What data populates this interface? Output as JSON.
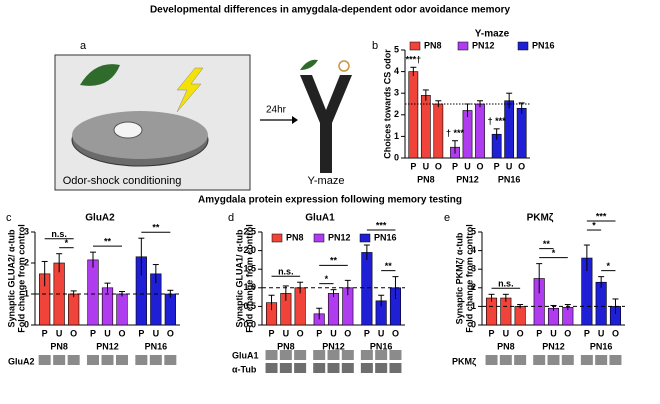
{
  "figure_title": "Developmental differences in amygdala-dependent odor avoidance memory",
  "section_title": "Amygdala protein expression following memory testing",
  "panel_letters": [
    "a",
    "b",
    "c",
    "d",
    "e"
  ],
  "panel_a": {
    "step1": "Odor-shock conditioning",
    "delay": "24hr",
    "step2": "Y-maze"
  },
  "blots": {
    "c": [
      "GluA2"
    ],
    "d": [
      "GluA1",
      "α-Tub"
    ],
    "e": [
      "PKMζ"
    ]
  },
  "chart_data": [
    {
      "type": "bar",
      "title": "Y-maze",
      "y_label": "Choices towards CS odor",
      "categories": [
        "P",
        "U",
        "O"
      ],
      "series": [
        {
          "name": "PN8",
          "color": "#f0433a",
          "values": [
            4.0,
            2.9,
            2.5
          ],
          "errors": [
            0.2,
            0.25,
            0.15
          ]
        },
        {
          "name": "PN12",
          "color": "#b03cf0",
          "values": [
            0.5,
            2.2,
            2.5
          ],
          "errors": [
            0.3,
            0.3,
            0.15
          ]
        },
        {
          "name": "PN16",
          "color": "#1f1fd6",
          "values": [
            1.1,
            2.65,
            2.3
          ],
          "errors": [
            0.25,
            0.35,
            0.25
          ]
        }
      ],
      "ylim": [
        0,
        5
      ],
      "yticks": [
        0,
        1,
        2,
        3,
        4,
        5
      ],
      "ref_line": 2.5,
      "legend": "top",
      "annotations": [
        "***†",
        "† ***",
        "† ***"
      ]
    },
    {
      "type": "bar",
      "title": "GluA2",
      "y_label": "Synaptic GLUA2/ α-tub",
      "y_label2": "Fold change from control",
      "categories": [
        "P",
        "U",
        "O"
      ],
      "series": [
        {
          "name": "PN8",
          "color": "#f0433a",
          "values": [
            1.65,
            2.0,
            1.0
          ],
          "errors": [
            0.4,
            0.3,
            0.1
          ]
        },
        {
          "name": "PN12",
          "color": "#b03cf0",
          "values": [
            2.1,
            1.2,
            1.0
          ],
          "errors": [
            0.25,
            0.15,
            0.08
          ]
        },
        {
          "name": "PN16",
          "color": "#1f1fd6",
          "values": [
            2.2,
            1.65,
            1.0
          ],
          "errors": [
            0.6,
            0.3,
            0.12
          ]
        }
      ],
      "ylim": [
        0,
        3
      ],
      "yticks": [
        0,
        1,
        2,
        3
      ],
      "ref_line": 1,
      "annotations": [
        "n.s.",
        "*",
        "**",
        "**"
      ]
    },
    {
      "type": "bar",
      "title": "GluA1",
      "y_label": "Synaptic GLUA1/ α-tub",
      "y_label2": "Fold change from control",
      "categories": [
        "P",
        "U",
        "O"
      ],
      "series": [
        {
          "name": "PN8",
          "color": "#f0433a",
          "values": [
            0.6,
            0.85,
            1.0
          ],
          "errors": [
            0.2,
            0.2,
            0.15
          ]
        },
        {
          "name": "PN12",
          "color": "#b03cf0",
          "values": [
            0.3,
            0.85,
            1.0
          ],
          "errors": [
            0.15,
            0.1,
            0.2
          ]
        },
        {
          "name": "PN16",
          "color": "#1f1fd6",
          "values": [
            1.95,
            0.65,
            1.0
          ],
          "errors": [
            0.2,
            0.15,
            0.3
          ]
        }
      ],
      "ylim": [
        0,
        2.5
      ],
      "yticks": [
        {
          "value": 0,
          "label": "0.0"
        },
        0.5,
        {
          "value": 1,
          "label": "1.0"
        },
        1.5,
        {
          "value": 2,
          "label": "2.0"
        },
        2.5
      ],
      "ref_line": 1,
      "legend": "upper right",
      "annotations": [
        "n.s.",
        "*",
        "**",
        "***",
        "**"
      ]
    },
    {
      "type": "bar",
      "title": "PKMζ",
      "y_label": "Synaptic PKMζ/ α-tub",
      "y_label2": "Fold change from control",
      "categories": [
        "P",
        "U",
        "O"
      ],
      "series": [
        {
          "name": "PN8",
          "color": "#f0433a",
          "values": [
            1.45,
            1.45,
            1.0
          ],
          "errors": [
            0.2,
            0.2,
            0.1
          ]
        },
        {
          "name": "PN12",
          "color": "#b03cf0",
          "values": [
            2.5,
            0.9,
            0.95
          ],
          "errors": [
            0.8,
            0.15,
            0.15
          ]
        },
        {
          "name": "PN16",
          "color": "#1f1fd6",
          "values": [
            3.6,
            2.3,
            1.0
          ],
          "errors": [
            0.7,
            0.3,
            0.4
          ]
        }
      ],
      "ylim": [
        0,
        5
      ],
      "yticks": [
        0,
        1,
        2,
        3,
        4,
        5
      ],
      "ref_line": 1,
      "annotations": [
        "n.s.",
        "**",
        "*",
        "***",
        "*",
        "*"
      ]
    }
  ]
}
